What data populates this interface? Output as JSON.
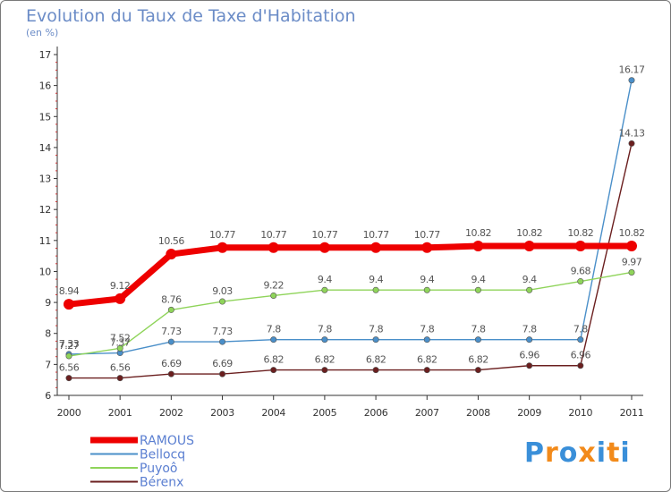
{
  "chart_data": {
    "type": "line",
    "title": "Evolution du Taux de Taxe d'Habitation",
    "subtitle": "(en %)",
    "categories": [
      "2000",
      "2001",
      "2002",
      "2003",
      "2004",
      "2005",
      "2006",
      "2007",
      "2008",
      "2009",
      "2010",
      "2011"
    ],
    "ylim": [
      6,
      17
    ],
    "yticks": [
      "6",
      "7",
      "8",
      "9",
      "10",
      "11",
      "12",
      "13",
      "14",
      "15",
      "16",
      "17"
    ],
    "series": [
      {
        "name": "Bérenx",
        "color": "#6b1f1f",
        "values": [
          6.56,
          6.56,
          6.69,
          6.69,
          6.82,
          6.82,
          6.82,
          6.82,
          6.82,
          6.96,
          6.96,
          14.13
        ],
        "labels": [
          "6.56",
          "6.56",
          "6.69",
          "6.69",
          "6.82",
          "6.82",
          "6.82",
          "6.82",
          "6.82",
          "6.96",
          "6.96",
          "14.13"
        ]
      },
      {
        "name": "Bellocq",
        "color": "#4a8fc9",
        "values": [
          7.33,
          7.37,
          7.73,
          7.73,
          7.8,
          7.8,
          7.8,
          7.8,
          7.8,
          7.8,
          7.8,
          16.17
        ],
        "labels": [
          "7.33",
          "7.37",
          "7.73",
          "7.73",
          "7.8",
          "7.8",
          "7.8",
          "7.8",
          "7.8",
          "7.8",
          "7.8",
          "16.17"
        ]
      },
      {
        "name": "Puyoô",
        "color": "#8fd45a",
        "values": [
          7.27,
          7.52,
          8.76,
          9.03,
          9.22,
          9.4,
          9.4,
          9.4,
          9.4,
          9.4,
          9.68,
          9.97
        ],
        "labels": [
          "7.27",
          "7.52",
          "8.76",
          "9.03",
          "9.22",
          "9.4",
          "9.4",
          "9.4",
          "9.4",
          "9.4",
          "9.68",
          "9.97"
        ]
      },
      {
        "name": "RAMOUS",
        "color": "#ee0000",
        "bold": true,
        "values": [
          8.94,
          9.12,
          10.56,
          10.77,
          10.77,
          10.77,
          10.77,
          10.77,
          10.82,
          10.82,
          10.82,
          10.82
        ],
        "labels": [
          "8.94",
          "9.12",
          "10.56",
          "10.77",
          "10.77",
          "10.77",
          "10.77",
          "10.77",
          "10.82",
          "10.82",
          "10.82",
          "10.82"
        ]
      }
    ],
    "legend": [
      "RAMOUS",
      "Bellocq",
      "Puyoô",
      "Bérenx"
    ],
    "legend_placement": "bottom-left"
  },
  "logo": {
    "text": "Proxiti",
    "colors": [
      "#3a8fd9",
      "#f28a1a",
      "#3a8fd9",
      "#f28a1a",
      "#3a8fd9",
      "#f28a1a",
      "#3a8fd9"
    ]
  }
}
